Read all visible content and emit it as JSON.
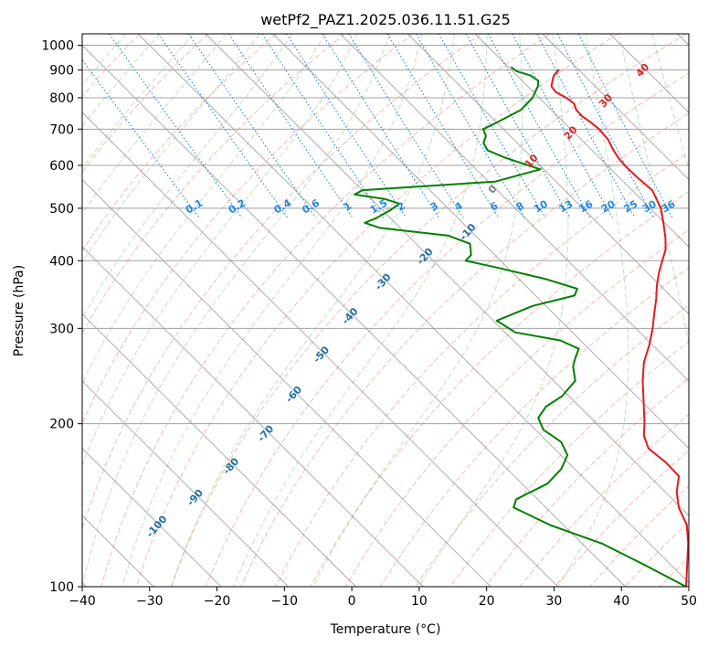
{
  "chart_data": {
    "type": "line",
    "title": "wetPf2_PAZ1.2025.036.11.51.G25",
    "xlabel": "Temperature (°C)",
    "ylabel": "Pressure (hPa)",
    "xlim": [
      -40,
      50
    ],
    "ylim": [
      1050,
      100
    ],
    "y_scale": "log",
    "skew_slope_degC_per_ln_p": 35,
    "x_ticks": [
      -40,
      -30,
      -20,
      -10,
      0,
      10,
      20,
      30,
      40,
      50
    ],
    "y_ticks": [
      100,
      200,
      300,
      400,
      500,
      600,
      700,
      800,
      900,
      1000
    ],
    "grid": true,
    "series": [
      {
        "color": "#e41a1c",
        "points": [
          [
            900,
            27.0
          ],
          [
            880,
            25.5
          ],
          [
            860,
            24.5
          ],
          [
            840,
            23.5
          ],
          [
            820,
            23.3
          ],
          [
            800,
            24.0
          ],
          [
            780,
            24.3
          ],
          [
            760,
            23.7
          ],
          [
            740,
            23.6
          ],
          [
            720,
            24.0
          ],
          [
            700,
            24.2
          ],
          [
            670,
            24.0
          ],
          [
            640,
            23.2
          ],
          [
            620,
            22.8
          ],
          [
            600,
            22.6
          ],
          [
            570,
            22.7
          ],
          [
            540,
            23.0
          ],
          [
            500,
            21.6
          ],
          [
            470,
            19.8
          ],
          [
            440,
            17.8
          ],
          [
            420,
            16.2
          ],
          [
            400,
            14.0
          ],
          [
            380,
            11.7
          ],
          [
            360,
            9.5
          ],
          [
            340,
            7.4
          ],
          [
            320,
            5.0
          ],
          [
            300,
            2.5
          ],
          [
            280,
            -0.4
          ],
          [
            260,
            -3.8
          ],
          [
            240,
            -6.8
          ],
          [
            220,
            -9.7
          ],
          [
            200,
            -12.9
          ],
          [
            190,
            -14.8
          ],
          [
            180,
            -16.0
          ],
          [
            170,
            -15.5
          ],
          [
            160,
            -15.6
          ],
          [
            150,
            -18.2
          ],
          [
            140,
            -20.3
          ],
          [
            130,
            -21.7
          ],
          [
            120,
            -24.3
          ],
          [
            110,
            -27.5
          ],
          [
            100,
            -31.0
          ]
        ]
      },
      {
        "color": "#008000",
        "points": [
          [
            910,
            20.4
          ],
          [
            895,
            20.6
          ],
          [
            880,
            22.0
          ],
          [
            860,
            22.4
          ],
          [
            840,
            21.5
          ],
          [
            800,
            19.0
          ],
          [
            760,
            15.5
          ],
          [
            720,
            10.0
          ],
          [
            700,
            7.0
          ],
          [
            680,
            6.4
          ],
          [
            660,
            5.0
          ],
          [
            640,
            4.5
          ],
          [
            620,
            6.0
          ],
          [
            590,
            9.5
          ],
          [
            560,
            1.0
          ],
          [
            540,
            -20.0
          ],
          [
            530,
            -21.8
          ],
          [
            520,
            -18.0
          ],
          [
            510,
            -16.5
          ],
          [
            495,
            -19.0
          ],
          [
            480,
            -22.0
          ],
          [
            470,
            -24.5
          ],
          [
            460,
            -23.0
          ],
          [
            445,
            -14.0
          ],
          [
            430,
            -12.0
          ],
          [
            410,
            -13.5
          ],
          [
            400,
            -15.2
          ],
          [
            390,
            -12.0
          ],
          [
            370,
            -6.0
          ],
          [
            355,
            -2.8
          ],
          [
            345,
            -4.2
          ],
          [
            330,
            -12.0
          ],
          [
            310,
            -19.5
          ],
          [
            295,
            -18.5
          ],
          [
            285,
            -13.0
          ],
          [
            275,
            -11.5
          ],
          [
            265,
            -13.3
          ],
          [
            255,
            -15.0
          ],
          [
            240,
            -16.8
          ],
          [
            225,
            -21.0
          ],
          [
            215,
            -25.0
          ],
          [
            205,
            -27.8
          ],
          [
            195,
            -28.8
          ],
          [
            185,
            -28.0
          ],
          [
            175,
            -29.0
          ],
          [
            165,
            -32.0
          ],
          [
            155,
            -36.2
          ],
          [
            145,
            -43.2
          ],
          [
            140,
            -44.8
          ],
          [
            130,
            -42.0
          ],
          [
            120,
            -37.0
          ],
          [
            110,
            -34.0
          ],
          [
            100,
            -31.0
          ]
        ]
      }
    ],
    "reference_lines": {
      "dry_adiabats_label_degC": [
        -100,
        -90,
        -80,
        -70,
        -60,
        -50,
        -40,
        -30,
        -20,
        -10,
        0,
        10,
        20,
        30,
        40
      ],
      "mixing_ratio_labels": [
        "0.1",
        "0.2",
        "0.4",
        "0.6",
        "1",
        "1.5",
        "2",
        "3",
        "4",
        "6",
        "8",
        "10",
        "13",
        "16",
        "20",
        "25",
        "30",
        "36"
      ]
    }
  },
  "colors": {
    "temperature": "#e41a1c",
    "dewpoint": "#008000",
    "dry_adiabat": "#fa8072",
    "moist_adiabat": "#2ca02c",
    "mixing_ratio": "#1e88e5",
    "isotherm": "#808080",
    "isobar": "#a0a0a0",
    "label_dry_cold": "#1f6fa3",
    "label_dry_zero": "#808080",
    "label_dry_warm": "#d62728",
    "label_mixing": "#1e88e5"
  }
}
